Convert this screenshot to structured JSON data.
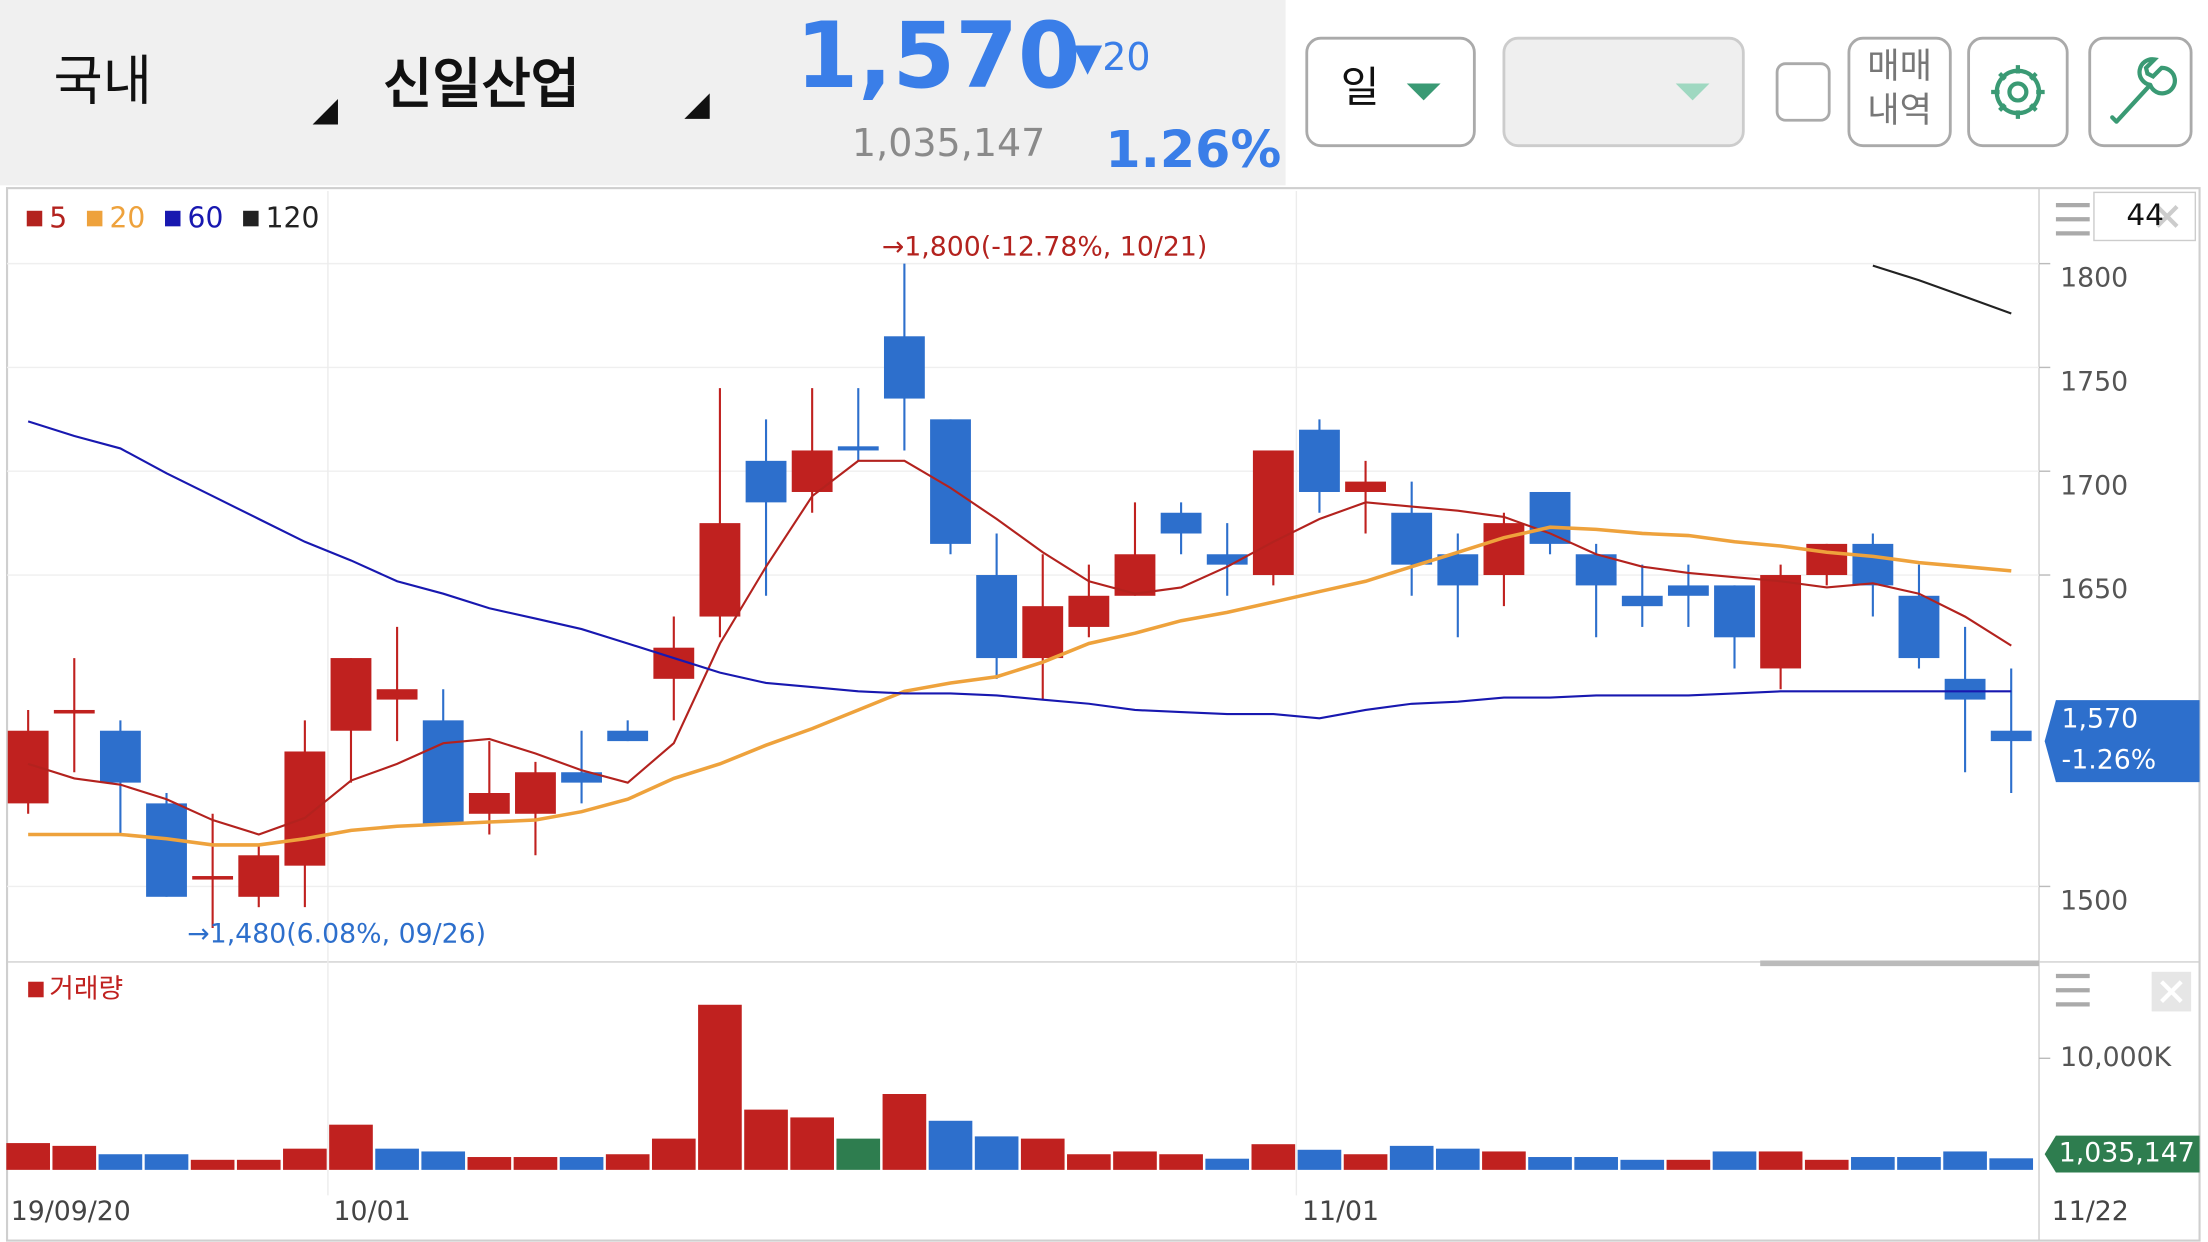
{
  "header": {
    "market": "국내",
    "stock": "신일산업",
    "price": "1,570",
    "change": "▼20",
    "volume": "1,035,147",
    "rate": "1.26%",
    "period": "일",
    "history": [
      "매매",
      "내역"
    ]
  },
  "chart_data": {
    "type": "candlestick",
    "categories": [
      "19/09/20",
      null,
      null,
      null,
      null,
      null,
      null,
      "10/01",
      null,
      null,
      null,
      null,
      null,
      null,
      null,
      null,
      null,
      null,
      null,
      null,
      null,
      null,
      null,
      null,
      null,
      null,
      null,
      null,
      "11/01",
      null,
      null,
      null,
      null,
      null,
      null,
      null,
      null,
      null,
      null,
      null,
      null,
      null,
      null,
      "11/22"
    ],
    "open": [
      1540,
      1585,
      1575,
      1540,
      1505,
      1495,
      1510,
      1575,
      1590,
      1580,
      1535,
      1535,
      1555,
      1575,
      1600,
      1630,
      1705,
      1690,
      1712,
      1765,
      1725,
      1650,
      1610,
      1625,
      1640,
      1680,
      1660,
      1650,
      1720,
      1690,
      1680,
      1660,
      1650,
      1690,
      1660,
      1640,
      1645,
      1645,
      1605,
      1650,
      1665,
      1640,
      1600,
      1575
    ],
    "high": [
      1585,
      1610,
      1580,
      1545,
      1535,
      1520,
      1580,
      1610,
      1625,
      1595,
      1570,
      1560,
      1575,
      1580,
      1630,
      1740,
      1725,
      1740,
      1740,
      1800,
      1725,
      1670,
      1660,
      1655,
      1685,
      1685,
      1675,
      1710,
      1725,
      1705,
      1695,
      1670,
      1680,
      1690,
      1665,
      1655,
      1655,
      1645,
      1655,
      1665,
      1670,
      1655,
      1625,
      1605
    ],
    "low": [
      1535,
      1555,
      1525,
      1495,
      1480,
      1490,
      1490,
      1550,
      1570,
      1530,
      1525,
      1515,
      1540,
      1570,
      1580,
      1620,
      1640,
      1680,
      1705,
      1710,
      1660,
      1600,
      1590,
      1620,
      1640,
      1660,
      1640,
      1645,
      1680,
      1670,
      1640,
      1620,
      1635,
      1660,
      1620,
      1625,
      1625,
      1605,
      1595,
      1645,
      1630,
      1605,
      1555,
      1545
    ],
    "close": [
      1575,
      1585,
      1550,
      1495,
      1505,
      1515,
      1565,
      1610,
      1595,
      1530,
      1545,
      1555,
      1550,
      1570,
      1615,
      1675,
      1685,
      1710,
      1710,
      1735,
      1665,
      1610,
      1635,
      1640,
      1660,
      1670,
      1655,
      1710,
      1690,
      1695,
      1655,
      1645,
      1675,
      1665,
      1645,
      1635,
      1640,
      1620,
      1650,
      1665,
      1645,
      1610,
      1590,
      1570
    ],
    "up_color": "#c0211f",
    "down_color": "#2d6fcc",
    "flat_color": "#2e7d4f",
    "ylim": [
      1465,
      1835
    ],
    "yticks": [
      1500,
      1650,
      1700,
      1750,
      1800
    ],
    "series": [
      {
        "name": "5",
        "color": "#b3221e",
        "values": [
          1559,
          1552,
          1549,
          1542,
          1532,
          1525,
          1533,
          1551,
          1559,
          1569,
          1571,
          1564,
          1556,
          1550,
          1569,
          1617,
          1654,
          1688,
          1705,
          1705,
          1692,
          1677,
          1661,
          1647,
          1641,
          1644,
          1654,
          1666,
          1677,
          1685,
          1683,
          1681,
          1678,
          1670,
          1660,
          1654,
          1651,
          1649,
          1647,
          1644,
          1646,
          1641,
          1630,
          1616
        ]
      },
      {
        "name": "20",
        "color": "#eea23c",
        "values": [
          1525,
          1525,
          1525,
          1523,
          1520,
          1520,
          1523,
          1527,
          1529,
          1530,
          1531,
          1532,
          1536,
          1542,
          1552,
          1559,
          1568,
          1576,
          1585,
          1594,
          1598,
          1601,
          1608,
          1617,
          1622,
          1628,
          1632,
          1637,
          1642,
          1647,
          1654,
          1661,
          1668,
          1673,
          1672,
          1670,
          1669,
          1666,
          1664,
          1661,
          1659,
          1656,
          1654,
          1652
        ]
      },
      {
        "name": "60",
        "color": "#1818b0",
        "values": [
          1724,
          1717,
          1711,
          1699,
          1688,
          1677,
          1666,
          1657,
          1647,
          1641,
          1634,
          1629,
          1624,
          1617,
          1610,
          1603,
          1598,
          1596,
          1594,
          1593,
          1593,
          1592,
          1590,
          1588,
          1585,
          1584,
          1583,
          1583,
          1581,
          1585,
          1588,
          1589,
          1591,
          1591,
          1592,
          1592,
          1592,
          1593,
          1594,
          1594,
          1594,
          1594,
          1594,
          1594
        ]
      },
      {
        "name": "120",
        "color": "#222222",
        "values": [
          null,
          null,
          null,
          null,
          null,
          null,
          null,
          null,
          null,
          null,
          null,
          null,
          null,
          null,
          null,
          null,
          null,
          null,
          null,
          null,
          null,
          null,
          null,
          null,
          null,
          null,
          null,
          null,
          null,
          null,
          null,
          null,
          null,
          null,
          null,
          null,
          null,
          null,
          null,
          null,
          1799,
          1792,
          1784,
          1776
        ]
      }
    ],
    "annotations": {
      "high": "→1,800(-12.78%, 10/21)",
      "low": "→1,480(6.08%, 09/26)"
    },
    "visible_count": 44,
    "price_tag_change": "-1.26%",
    "volume": {
      "title": "거래량",
      "values": [
        2400000,
        2150000,
        1400000,
        1400000,
        900000,
        900000,
        1900000,
        4050000,
        1900000,
        1650000,
        1150000,
        1150000,
        1150000,
        1400000,
        2800000,
        14800000,
        5400000,
        4700000,
        2800000,
        6800000,
        4400000,
        3000000,
        2800000,
        1400000,
        1650000,
        1400000,
        1000000,
        2300000,
        1800000,
        1400000,
        2150000,
        1900000,
        1650000,
        1150000,
        1150000,
        900000,
        900000,
        1650000,
        1650000,
        900000,
        1150000,
        1150000,
        1650000,
        1035147
      ],
      "ylim": [
        0,
        17500000
      ],
      "yticks": [
        {
          "value": 10000000,
          "label": "10,000K"
        }
      ],
      "last_label": "1,035,147"
    }
  }
}
